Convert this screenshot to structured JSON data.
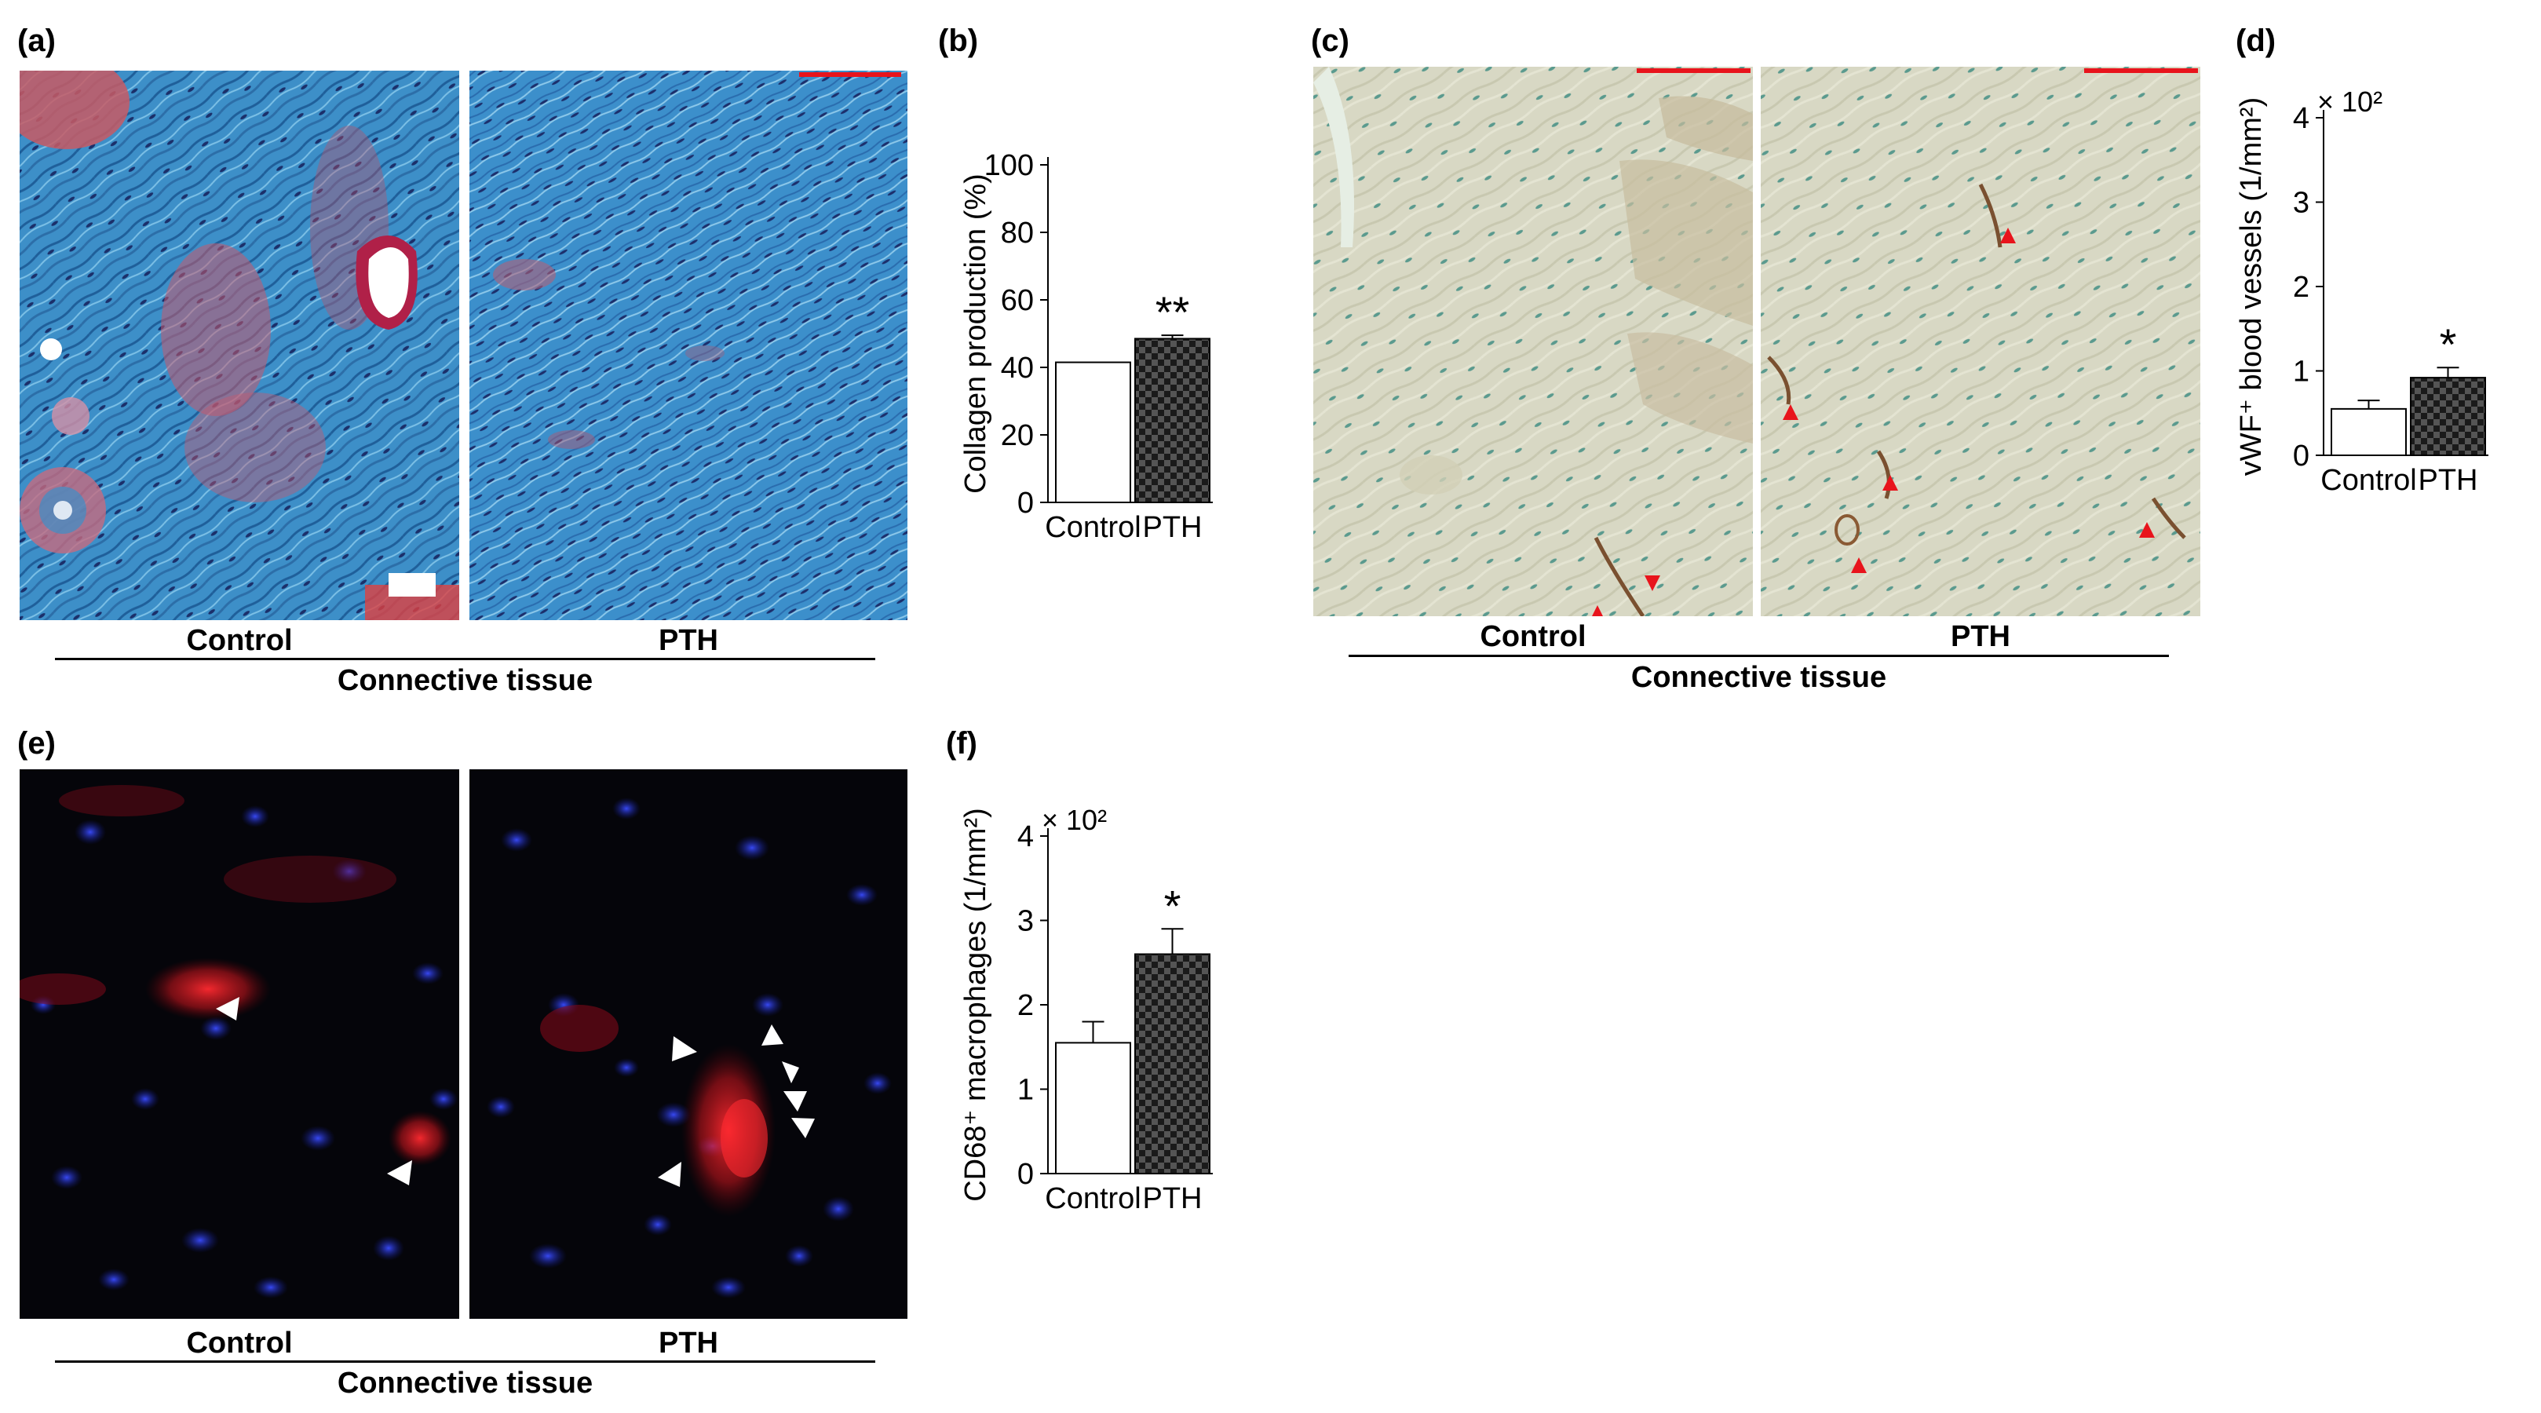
{
  "panels": {
    "a": {
      "label": "(a)",
      "images": [
        {
          "caption": "Control"
        },
        {
          "caption": "PTH"
        }
      ],
      "group_caption": "Connective tissue"
    },
    "b": {
      "label": "(b)"
    },
    "c": {
      "label": "(c)",
      "images": [
        {
          "caption": "Control"
        },
        {
          "caption": "PTH"
        }
      ],
      "group_caption": "Connective tissue"
    },
    "d": {
      "label": "(d)"
    },
    "e": {
      "label": "(e)",
      "images": [
        {
          "caption": "Control"
        },
        {
          "caption": "PTH"
        }
      ],
      "group_caption": "Connective tissue"
    },
    "f": {
      "label": "(f)"
    }
  },
  "colors": {
    "scale_bar": "#e8141c",
    "trichrome_blue": "#3d8fc8",
    "trichrome_red": "#c8505a",
    "ihc_background": "#d8d8c4",
    "arrowhead_red": "#e8141c",
    "fluor_background": "#05050a",
    "fluor_red": "#e8202a",
    "fluor_blue": "#2030d0",
    "arrowhead_white": "#ffffff"
  },
  "chart_data": [
    {
      "id": "b",
      "type": "bar",
      "categories": [
        "Control",
        "PTH"
      ],
      "values": [
        41.5,
        48.5
      ],
      "errors": [
        0,
        1
      ],
      "ylabel": "Collagen production (%)",
      "ylim": [
        0,
        100
      ],
      "yticks": [
        "0",
        "20",
        "40",
        "60",
        "80",
        "100"
      ],
      "significance": [
        "",
        "**"
      ],
      "bar_fills": [
        "white",
        "checker"
      ],
      "multiplier": ""
    },
    {
      "id": "d",
      "type": "bar",
      "categories": [
        "Control",
        "PTH"
      ],
      "values": [
        0.55,
        0.92
      ],
      "errors": [
        0.1,
        0.12
      ],
      "ylabel": "vWF⁺ blood vessels (1/mm²)",
      "ylim": [
        0,
        4
      ],
      "yticks": [
        "0",
        "1",
        "2",
        "3",
        "4"
      ],
      "significance": [
        "",
        "*"
      ],
      "bar_fills": [
        "white",
        "checker"
      ],
      "multiplier": "× 10²"
    },
    {
      "id": "f",
      "type": "bar",
      "categories": [
        "Control",
        "PTH"
      ],
      "values": [
        1.55,
        2.6
      ],
      "errors": [
        0.25,
        0.3
      ],
      "ylabel": "CD68⁺ macrophages (1/mm²)",
      "ylim": [
        0,
        4
      ],
      "yticks": [
        "0",
        "1",
        "2",
        "3",
        "4"
      ],
      "significance": [
        "",
        "*"
      ],
      "bar_fills": [
        "white",
        "checker"
      ],
      "multiplier": "× 10²"
    }
  ]
}
